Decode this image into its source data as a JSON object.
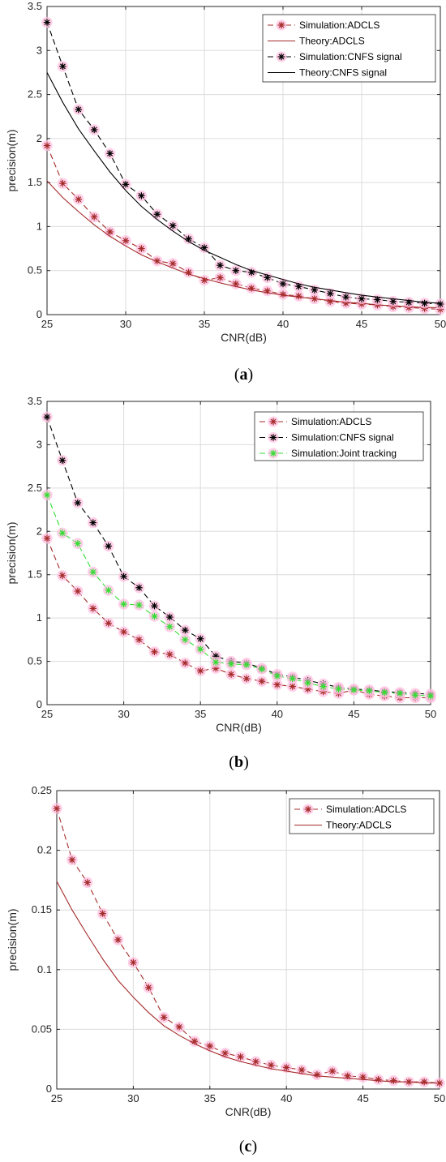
{
  "colors": {
    "adcls": "#a52a2a",
    "cnfs": "#000000",
    "joint": "#33dd33",
    "marker_halo": "#ffc0e0",
    "grid": "#dcdcdc",
    "axis": "#262626"
  },
  "chart_data": [
    {
      "type": "line",
      "caption": "(a)",
      "caption_letter": "a",
      "xlabel": "CNR(dB)",
      "ylabel": "precision(m)",
      "xlim": [
        25,
        50
      ],
      "ylim": [
        0,
        3.5
      ],
      "xticks": [
        25,
        30,
        35,
        40,
        45,
        50
      ],
      "yticks": [
        0,
        0.5,
        1,
        1.5,
        2,
        2.5,
        3,
        3.5
      ],
      "ytick_labels": [
        "0",
        "0.5",
        "1",
        "1.5",
        "2",
        "2.5",
        "3",
        "3.5"
      ],
      "grid": true,
      "legend_position": "top-right",
      "x": [
        25,
        26,
        27,
        28,
        29,
        30,
        31,
        32,
        33,
        34,
        35,
        36,
        37,
        38,
        39,
        40,
        41,
        42,
        43,
        44,
        45,
        46,
        47,
        48,
        49,
        50
      ],
      "series": [
        {
          "name": "Simulation:ADCLS",
          "style": "dashed-marker",
          "color": "#a52a2a",
          "values": [
            1.92,
            1.49,
            1.31,
            1.11,
            0.94,
            0.84,
            0.75,
            0.61,
            0.58,
            0.48,
            0.39,
            0.42,
            0.35,
            0.3,
            0.27,
            0.23,
            0.21,
            0.18,
            0.15,
            0.13,
            0.12,
            0.11,
            0.09,
            0.08,
            0.07,
            0.06
          ]
        },
        {
          "name": "Theory:ADCLS",
          "style": "solid",
          "color": "#a52a2a",
          "values": [
            1.52,
            1.33,
            1.17,
            1.02,
            0.89,
            0.78,
            0.68,
            0.6,
            0.53,
            0.46,
            0.41,
            0.36,
            0.32,
            0.28,
            0.25,
            0.22,
            0.2,
            0.18,
            0.16,
            0.14,
            0.13,
            0.11,
            0.1,
            0.09,
            0.08,
            0.08
          ]
        },
        {
          "name": "Simulation:CNFS signal",
          "style": "dashed-marker",
          "color": "#000000",
          "values": [
            3.32,
            2.82,
            2.33,
            2.1,
            1.83,
            1.48,
            1.35,
            1.14,
            1.01,
            0.86,
            0.76,
            0.56,
            0.5,
            0.48,
            0.42,
            0.35,
            0.32,
            0.28,
            0.24,
            0.2,
            0.18,
            0.17,
            0.15,
            0.14,
            0.13,
            0.12
          ]
        },
        {
          "name": "Theory:CNFS signal",
          "style": "solid",
          "color": "#000000",
          "values": [
            2.75,
            2.41,
            2.11,
            1.86,
            1.62,
            1.41,
            1.23,
            1.08,
            0.95,
            0.83,
            0.73,
            0.65,
            0.57,
            0.5,
            0.45,
            0.4,
            0.35,
            0.31,
            0.28,
            0.25,
            0.22,
            0.2,
            0.18,
            0.16,
            0.14,
            0.13
          ]
        }
      ]
    },
    {
      "type": "line",
      "caption": "(b)",
      "caption_letter": "b",
      "xlabel": "CNR(dB)",
      "ylabel": "precision(m)",
      "xlim": [
        25,
        50
      ],
      "ylim": [
        0,
        3.5
      ],
      "xticks": [
        25,
        30,
        35,
        40,
        45,
        50
      ],
      "yticks": [
        0,
        0.5,
        1,
        1.5,
        2,
        2.5,
        3,
        3.5
      ],
      "ytick_labels": [
        "0",
        "0.5",
        "1",
        "1.5",
        "2",
        "2.5",
        "3",
        "3.5"
      ],
      "grid": true,
      "legend_position": "top-right",
      "x": [
        25,
        26,
        27,
        28,
        29,
        30,
        31,
        32,
        33,
        34,
        35,
        36,
        37,
        38,
        39,
        40,
        41,
        42,
        43,
        44,
        45,
        46,
        47,
        48,
        49,
        50
      ],
      "series": [
        {
          "name": "Simulation:ADCLS",
          "style": "dashed-marker",
          "color": "#a52a2a",
          "values": [
            1.92,
            1.49,
            1.31,
            1.11,
            0.94,
            0.84,
            0.75,
            0.61,
            0.58,
            0.48,
            0.39,
            0.42,
            0.35,
            0.3,
            0.27,
            0.23,
            0.21,
            0.18,
            0.15,
            0.13,
            0.17,
            0.12,
            0.1,
            0.08,
            0.08,
            0.08
          ]
        },
        {
          "name": "Simulation:CNFS signal",
          "style": "dashed-marker",
          "color": "#000000",
          "values": [
            3.32,
            2.82,
            2.33,
            2.1,
            1.83,
            1.48,
            1.35,
            1.14,
            1.01,
            0.86,
            0.76,
            0.56,
            0.5,
            0.48,
            0.42,
            0.35,
            0.32,
            0.28,
            0.24,
            0.2,
            0.18,
            0.17,
            0.15,
            0.14,
            0.13,
            0.12
          ]
        },
        {
          "name": "Simulation:Joint tracking",
          "style": "dashed-marker",
          "color": "#33dd33",
          "values": [
            2.42,
            1.98,
            1.86,
            1.53,
            1.32,
            1.16,
            1.15,
            1.02,
            0.9,
            0.75,
            0.64,
            0.49,
            0.47,
            0.46,
            0.41,
            0.33,
            0.3,
            0.25,
            0.21,
            0.18,
            0.17,
            0.16,
            0.14,
            0.13,
            0.11,
            0.1
          ]
        }
      ]
    },
    {
      "type": "line",
      "caption": "(c)",
      "caption_letter": "c",
      "xlabel": "CNR(dB)",
      "ylabel": "precision(m)",
      "xlim": [
        25,
        50
      ],
      "ylim": [
        0,
        0.25
      ],
      "xticks": [
        25,
        30,
        35,
        40,
        45,
        50
      ],
      "yticks": [
        0,
        0.05,
        0.1,
        0.15,
        0.2,
        0.25
      ],
      "ytick_labels": [
        "0",
        "0.05",
        "0.1",
        "0.15",
        "0.2",
        "0.25"
      ],
      "grid": true,
      "legend_position": "top-right",
      "x": [
        25,
        26,
        27,
        28,
        29,
        30,
        31,
        32,
        33,
        34,
        35,
        36,
        37,
        38,
        39,
        40,
        41,
        42,
        43,
        44,
        45,
        46,
        47,
        48,
        49,
        50
      ],
      "series": [
        {
          "name": "Simulation:ADCLS",
          "style": "dashed-marker",
          "color": "#a52a2a",
          "values": [
            0.235,
            0.192,
            0.173,
            0.147,
            0.125,
            0.106,
            0.085,
            0.06,
            0.052,
            0.04,
            0.036,
            0.03,
            0.027,
            0.023,
            0.02,
            0.018,
            0.016,
            0.012,
            0.015,
            0.011,
            0.01,
            0.008,
            0.007,
            0.006,
            0.006,
            0.005
          ]
        },
        {
          "name": "Theory:ADCLS",
          "style": "solid",
          "color": "#a52a2a",
          "values": [
            0.174,
            0.15,
            0.129,
            0.109,
            0.091,
            0.077,
            0.064,
            0.053,
            0.045,
            0.038,
            0.032,
            0.027,
            0.023,
            0.02,
            0.017,
            0.015,
            0.013,
            0.011,
            0.01,
            0.009,
            0.008,
            0.007,
            0.006,
            0.006,
            0.005,
            0.005
          ]
        }
      ]
    }
  ]
}
